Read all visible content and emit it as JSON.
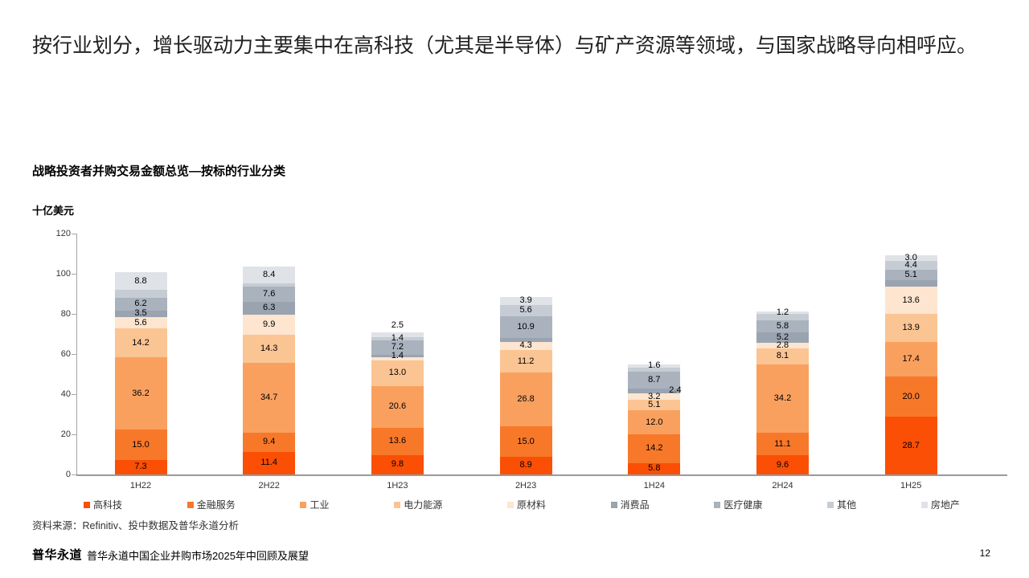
{
  "page": {
    "heading": "按行业划分，增长驱动力主要集中在高科技（尤其是半导体）与矿产资源等领域，与国家战略导向相呼应。",
    "source_note": "资料来源：Refinitiv、投中数据及普华永道分析",
    "footer": {
      "brand": "普华永道",
      "report_title": "普华永道中国企业并购市场2025年中回顾及展望",
      "page_number": "12"
    }
  },
  "chart_data": {
    "type": "bar",
    "variant": "stacked",
    "title": "战略投资者并购交易金额总览—按标的行业分类",
    "unit_label": "十亿美元",
    "categories": [
      "1H22",
      "2H22",
      "1H23",
      "2H23",
      "1H24",
      "2H24",
      "1H25"
    ],
    "ylim": [
      0,
      120
    ],
    "yticks": [
      0,
      20,
      40,
      60,
      80,
      100,
      120
    ],
    "grid": "off",
    "legend_position": "bottom",
    "note": "values without visible data labels are estimated from bar heights",
    "series": [
      {
        "name": "高科技",
        "color": "#fa4f04",
        "values": [
          7.3,
          11.4,
          9.8,
          8.9,
          5.8,
          9.6,
          28.7
        ],
        "labels": [
          "7.3",
          "11.4",
          "9.8",
          "8.9",
          "5.8",
          "9.6",
          "28.7"
        ]
      },
      {
        "name": "金融服务",
        "color": "#f8782a",
        "values": [
          15.0,
          9.4,
          13.6,
          15.0,
          14.2,
          11.1,
          20.0
        ],
        "labels": [
          "15.0",
          "9.4",
          "13.6",
          "15.0",
          "14.2",
          "11.1",
          "20.0"
        ]
      },
      {
        "name": "工业",
        "color": "#faa05f",
        "values": [
          36.2,
          34.7,
          20.6,
          26.8,
          12.0,
          34.2,
          17.4
        ],
        "labels": [
          "36.2",
          "34.7",
          "20.6",
          "26.8",
          "12.0",
          "34.2",
          "17.4"
        ]
      },
      {
        "name": "电力能源",
        "color": "#fbc493",
        "values": [
          14.2,
          14.3,
          13.0,
          11.2,
          5.1,
          8.1,
          13.9
        ],
        "labels": [
          "14.2",
          "14.3",
          "13.0",
          "11.2",
          "5.1",
          "8.1",
          "13.9"
        ]
      },
      {
        "name": "原材料",
        "color": "#fde5cf",
        "values": [
          5.6,
          9.9,
          1.4,
          4.3,
          3.2,
          2.8,
          13.6
        ],
        "labels": [
          "5.6",
          "9.9",
          null,
          "4.3",
          "3.2",
          "2.8",
          "13.6"
        ]
      },
      {
        "name": "消费品",
        "color": "#9aa3b0",
        "values": [
          3.5,
          6.3,
          1.4,
          1.8,
          2.4,
          5.2,
          3.2
        ],
        "labels": [
          "3.5",
          "6.3",
          "1.4",
          null,
          "2.4",
          "5.2",
          null
        ],
        "label_pos": [
          "in",
          "in",
          "in",
          "in",
          "right",
          "in",
          "in"
        ]
      },
      {
        "name": "医疗健康",
        "color": "#aab2be",
        "values": [
          6.2,
          7.6,
          7.2,
          10.9,
          8.7,
          5.8,
          5.1
        ],
        "labels": [
          "6.2",
          "7.6",
          "7.2",
          "10.9",
          "8.7",
          "5.8",
          "5.1"
        ]
      },
      {
        "name": "其他",
        "color": "#c6ccd4",
        "values": [
          4.0,
          1.8,
          1.4,
          5.6,
          1.9,
          3.1,
          4.4
        ],
        "labels": [
          null,
          null,
          "1.4",
          "5.6",
          null,
          null,
          "4.4"
        ]
      },
      {
        "name": "房地产",
        "color": "#dfe3e8",
        "values": [
          8.8,
          8.4,
          2.5,
          3.9,
          1.6,
          1.2,
          3.0
        ],
        "labels": [
          "8.8",
          "8.4",
          "2.5",
          "3.9",
          "1.6",
          "1.2",
          "3.0"
        ],
        "label_pos": [
          "in",
          "in",
          "above",
          "in",
          "in",
          "in",
          "in"
        ]
      }
    ]
  }
}
